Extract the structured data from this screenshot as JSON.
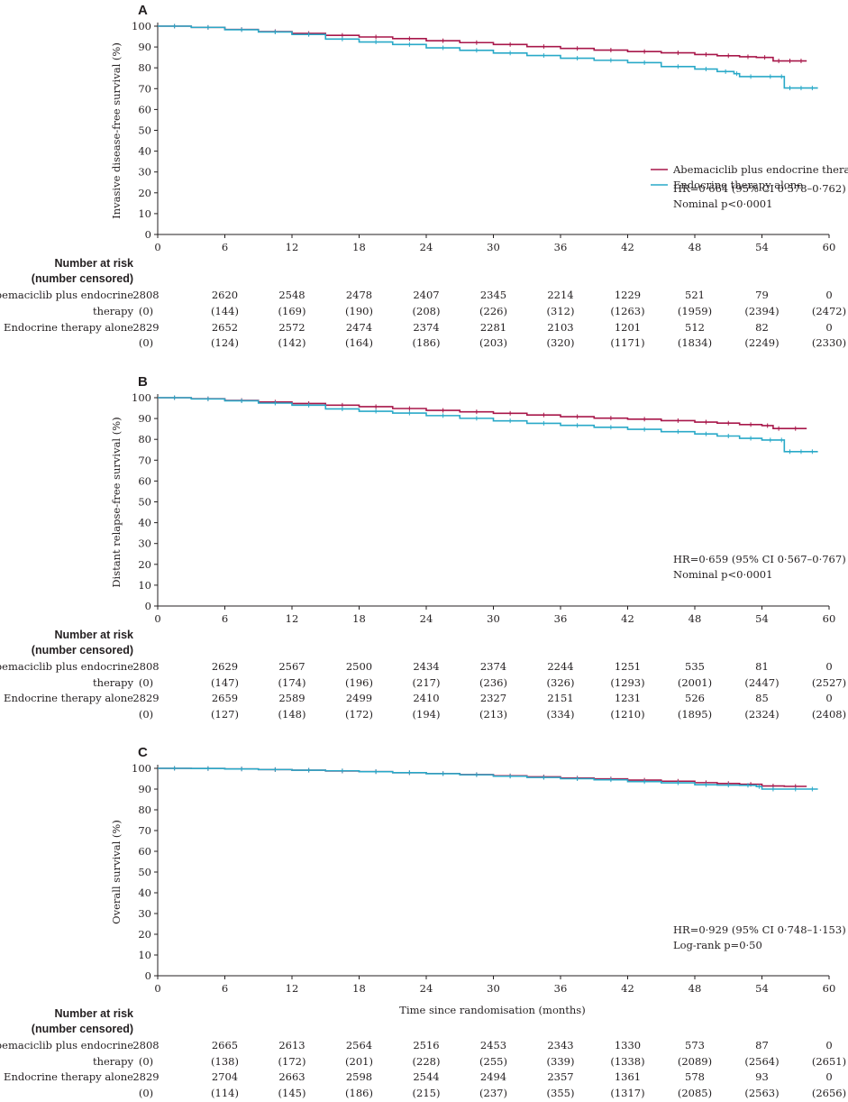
{
  "chart_data": [
    {
      "type": "line",
      "panel": "A",
      "ylabel": "Invasive disease-free survival (%)",
      "xlabel": "",
      "xlim": [
        0,
        60
      ],
      "ylim": [
        0,
        100
      ],
      "xticks": [
        0,
        6,
        12,
        18,
        24,
        30,
        36,
        42,
        48,
        54,
        60
      ],
      "yticks": [
        0,
        10,
        20,
        30,
        40,
        50,
        60,
        70,
        80,
        90,
        100
      ],
      "series": [
        {
          "name": "Abemaciclib plus endocrine therapy",
          "color": "#a8174a",
          "x": [
            0,
            3,
            6,
            9,
            12,
            15,
            18,
            21,
            24,
            27,
            30,
            33,
            36,
            39,
            42,
            45,
            48,
            50,
            52,
            53.5,
            55,
            56,
            57,
            58
          ],
          "y": [
            100,
            99.4,
            98.4,
            97.4,
            96.5,
            95.6,
            94.8,
            94.0,
            93.0,
            92.1,
            91.2,
            90.2,
            89.3,
            88.5,
            87.8,
            87.2,
            86.4,
            85.8,
            85.3,
            85.0,
            83.3,
            83.3,
            83.3,
            83.3
          ]
        },
        {
          "name": "Endocrine therapy alone",
          "color": "#29a9c8",
          "x": [
            0,
            3,
            6,
            9,
            12,
            15,
            18,
            21,
            24,
            27,
            30,
            33,
            36,
            39,
            42,
            45,
            48,
            50,
            51.5,
            52,
            54,
            55.5,
            56,
            57,
            58,
            59
          ],
          "y": [
            100,
            99.4,
            98.3,
            97.2,
            96.0,
            93.8,
            92.4,
            91.2,
            89.6,
            88.4,
            87.1,
            85.9,
            84.6,
            83.6,
            82.5,
            80.6,
            79.4,
            78.2,
            77.2,
            75.8,
            75.8,
            75.8,
            70.3,
            70.3,
            70.3,
            70.3
          ]
        }
      ],
      "annotations": [
        "HR=0·664 (95% CI 0·578–0·762)",
        "Nominal p<0·0001"
      ],
      "legend": "right"
    },
    {
      "type": "line",
      "panel": "B",
      "ylabel": "Distant relapse-free survival (%)",
      "xlabel": "",
      "xlim": [
        0,
        60
      ],
      "ylim": [
        0,
        100
      ],
      "xticks": [
        0,
        6,
        12,
        18,
        24,
        30,
        36,
        42,
        48,
        54,
        60
      ],
      "yticks": [
        0,
        10,
        20,
        30,
        40,
        50,
        60,
        70,
        80,
        90,
        100
      ],
      "series": [
        {
          "name": "Abemaciclib plus endocrine therapy",
          "color": "#a8174a",
          "x": [
            0,
            3,
            6,
            9,
            12,
            15,
            18,
            21,
            24,
            27,
            30,
            33,
            36,
            39,
            42,
            45,
            48,
            50,
            52,
            54,
            55,
            56,
            58
          ],
          "y": [
            100,
            99.5,
            98.7,
            97.9,
            97.2,
            96.4,
            95.7,
            94.8,
            93.9,
            93.2,
            92.5,
            91.7,
            90.9,
            90.2,
            89.7,
            89.0,
            88.3,
            87.8,
            87.1,
            86.6,
            85.2,
            85.2,
            85.2
          ]
        },
        {
          "name": "Endocrine therapy alone",
          "color": "#29a9c8",
          "x": [
            0,
            3,
            6,
            9,
            12,
            15,
            18,
            21,
            24,
            27,
            30,
            33,
            36,
            39,
            42,
            45,
            48,
            50,
            52,
            54,
            55.5,
            56,
            57,
            58,
            59
          ],
          "y": [
            100,
            99.4,
            98.5,
            97.4,
            96.4,
            94.6,
            93.5,
            92.6,
            91.4,
            90.1,
            88.9,
            87.7,
            86.7,
            85.8,
            84.8,
            83.7,
            82.6,
            81.6,
            80.5,
            79.7,
            79.7,
            74.1,
            74.1,
            74.1,
            74.1
          ]
        }
      ],
      "annotations": [
        "HR=0·659 (95% CI 0·567–0·767)",
        "Nominal p<0·0001"
      ]
    },
    {
      "type": "line",
      "panel": "C",
      "ylabel": "Overall survival (%)",
      "xlabel": "Time since randomisation (months)",
      "xlim": [
        0,
        60
      ],
      "ylim": [
        0,
        100
      ],
      "xticks": [
        0,
        6,
        12,
        18,
        24,
        30,
        36,
        42,
        48,
        54,
        60
      ],
      "yticks": [
        0,
        10,
        20,
        30,
        40,
        50,
        60,
        70,
        80,
        90,
        100
      ],
      "series": [
        {
          "name": "Abemaciclib plus endocrine therapy",
          "color": "#a8174a",
          "x": [
            0,
            3,
            6,
            9,
            12,
            15,
            18,
            21,
            24,
            27,
            30,
            33,
            36,
            39,
            42,
            45,
            48,
            50,
            52,
            54,
            56,
            58
          ],
          "y": [
            100,
            99.9,
            99.7,
            99.4,
            99.1,
            98.7,
            98.4,
            97.9,
            97.5,
            97.0,
            96.4,
            95.9,
            95.3,
            94.9,
            94.3,
            93.8,
            93.1,
            92.7,
            92.3,
            91.5,
            91.3,
            91.3
          ]
        },
        {
          "name": "Endocrine therapy alone",
          "color": "#29a9c8",
          "x": [
            0,
            3,
            6,
            9,
            12,
            15,
            18,
            21,
            24,
            27,
            30,
            33,
            36,
            39,
            42,
            45,
            48,
            50,
            52,
            53.5,
            54,
            56,
            58,
            59
          ],
          "y": [
            100,
            99.9,
            99.7,
            99.4,
            99.1,
            98.8,
            98.4,
            97.9,
            97.4,
            96.9,
            96.2,
            95.6,
            95.0,
            94.5,
            93.6,
            93.0,
            92.1,
            91.9,
            91.8,
            91.2,
            90.0,
            90.0,
            90.0,
            90.0
          ]
        }
      ],
      "annotations": [
        "HR=0·929 (95% CI 0·748–1·153)",
        "Log-rank p=0·50"
      ]
    }
  ],
  "risk_tables": [
    {
      "header_line1": "Number at risk",
      "header_line2": "(number censored)",
      "rows": [
        {
          "label_line1": "Abemaciclib plus endocrine",
          "label_line2": "therapy",
          "at_risk": [
            "2808",
            "2620",
            "2548",
            "2478",
            "2407",
            "2345",
            "2214",
            "1229",
            "521",
            "79",
            "0"
          ],
          "censored": [
            "(0)",
            "(144)",
            "(169)",
            "(190)",
            "(208)",
            "(226)",
            "(312)",
            "(1263)",
            "(1959)",
            "(2394)",
            "(2472)"
          ]
        },
        {
          "label_line1": "Endocrine therapy alone",
          "label_line2": "",
          "at_risk": [
            "2829",
            "2652",
            "2572",
            "2474",
            "2374",
            "2281",
            "2103",
            "1201",
            "512",
            "82",
            "0"
          ],
          "censored": [
            "(0)",
            "(124)",
            "(142)",
            "(164)",
            "(186)",
            "(203)",
            "(320)",
            "(1171)",
            "(1834)",
            "(2249)",
            "(2330)"
          ]
        }
      ]
    },
    {
      "header_line1": "Number at risk",
      "header_line2": "(number censored)",
      "rows": [
        {
          "label_line1": "Abemaciclib plus endocrine",
          "label_line2": "therapy",
          "at_risk": [
            "2808",
            "2629",
            "2567",
            "2500",
            "2434",
            "2374",
            "2244",
            "1251",
            "535",
            "81",
            "0"
          ],
          "censored": [
            "(0)",
            "(147)",
            "(174)",
            "(196)",
            "(217)",
            "(236)",
            "(326)",
            "(1293)",
            "(2001)",
            "(2447)",
            "(2527)"
          ]
        },
        {
          "label_line1": "Endocrine therapy alone",
          "label_line2": "",
          "at_risk": [
            "2829",
            "2659",
            "2589",
            "2499",
            "2410",
            "2327",
            "2151",
            "1231",
            "526",
            "85",
            "0"
          ],
          "censored": [
            "(0)",
            "(127)",
            "(148)",
            "(172)",
            "(194)",
            "(213)",
            "(334)",
            "(1210)",
            "(1895)",
            "(2324)",
            "(2408)"
          ]
        }
      ]
    },
    {
      "header_line1": "Number at risk",
      "header_line2": "(number censored)",
      "rows": [
        {
          "label_line1": "Abemaciclib plus endocrine",
          "label_line2": "therapy",
          "at_risk": [
            "2808",
            "2665",
            "2613",
            "2564",
            "2516",
            "2453",
            "2343",
            "1330",
            "573",
            "87",
            "0"
          ],
          "censored": [
            "(0)",
            "(138)",
            "(172)",
            "(201)",
            "(228)",
            "(255)",
            "(339)",
            "(1338)",
            "(2089)",
            "(2564)",
            "(2651)"
          ]
        },
        {
          "label_line1": "Endocrine therapy alone",
          "label_line2": "",
          "at_risk": [
            "2829",
            "2704",
            "2663",
            "2598",
            "2544",
            "2494",
            "2357",
            "1361",
            "578",
            "93",
            "0"
          ],
          "censored": [
            "(0)",
            "(114)",
            "(145)",
            "(186)",
            "(215)",
            "(237)",
            "(355)",
            "(1317)",
            "(2085)",
            "(2563)",
            "(2656)"
          ]
        }
      ]
    }
  ]
}
